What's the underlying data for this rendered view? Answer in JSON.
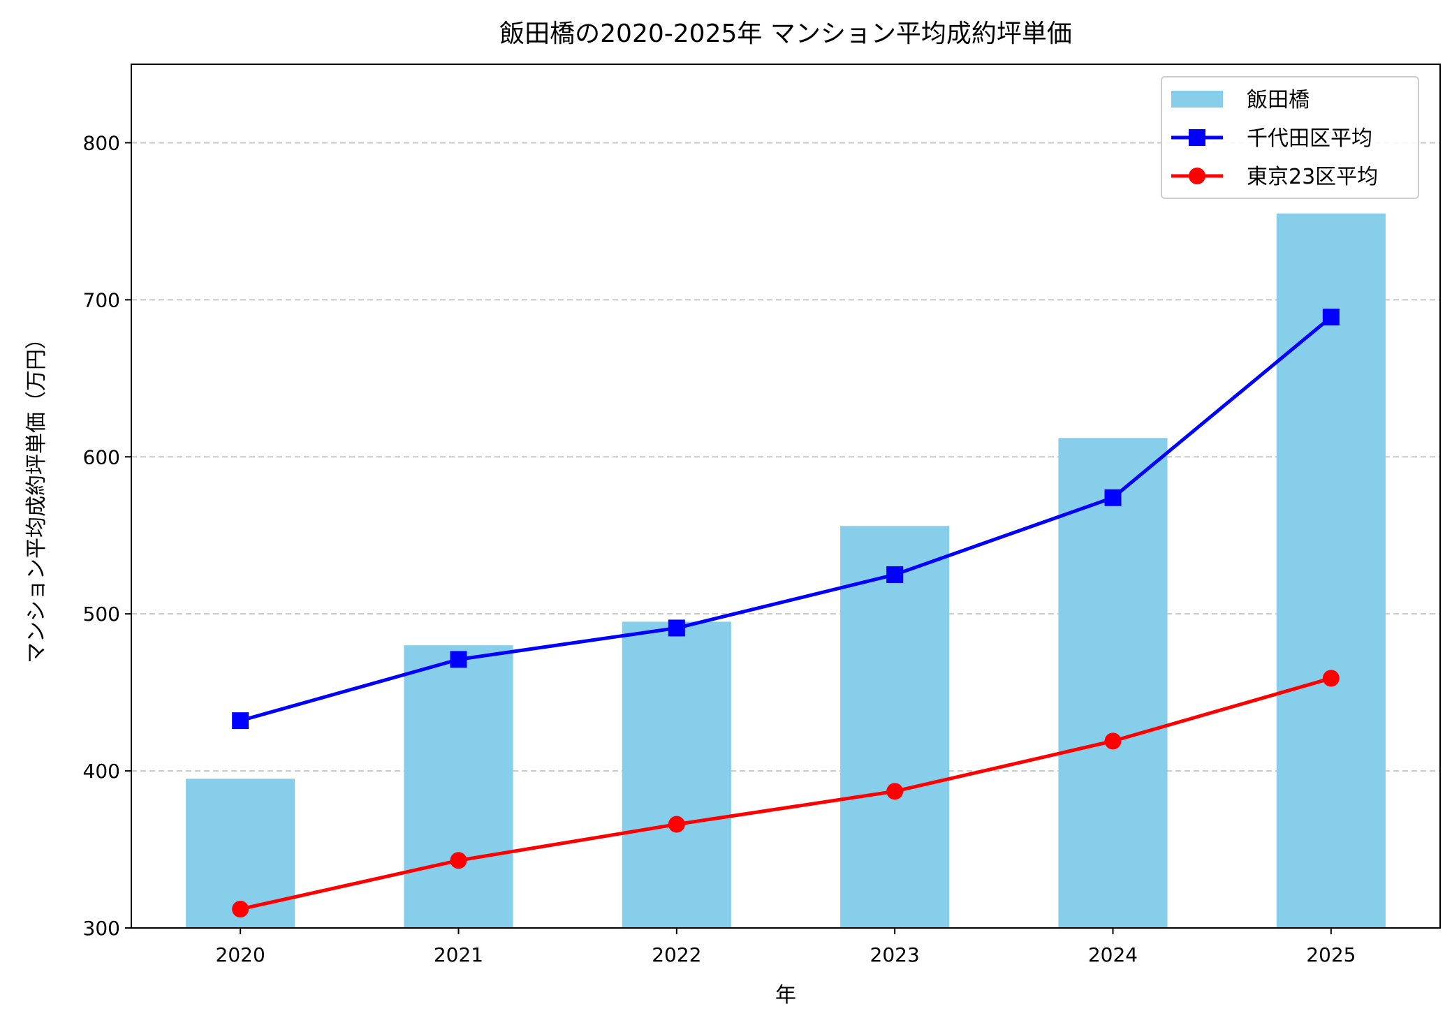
{
  "chart_data": {
    "type": "bar+line",
    "title": "飯田橋の2020-2025年 マンション平均成約坪単価",
    "xlabel": "年",
    "ylabel": "マンション平均成約坪単価（万円）",
    "categories": [
      "2020",
      "2021",
      "2022",
      "2023",
      "2024",
      "2025"
    ],
    "ylim": [
      300,
      850
    ],
    "yticks": [
      300,
      400,
      500,
      600,
      700,
      800
    ],
    "grid": "y-dashed",
    "legend_position": "top-right",
    "series": [
      {
        "name": "飯田橋",
        "type": "bar",
        "color": "#87CEEB",
        "values": [
          395,
          480,
          495,
          556,
          612,
          755
        ]
      },
      {
        "name": "千代田区平均",
        "type": "line",
        "marker": "square",
        "color": "#0000FF",
        "values": [
          432,
          471,
          491,
          525,
          574,
          689
        ]
      },
      {
        "name": "東京23区平均",
        "type": "line",
        "marker": "circle",
        "color": "#FF0000",
        "values": [
          312,
          343,
          366,
          387,
          419,
          459
        ]
      }
    ]
  }
}
